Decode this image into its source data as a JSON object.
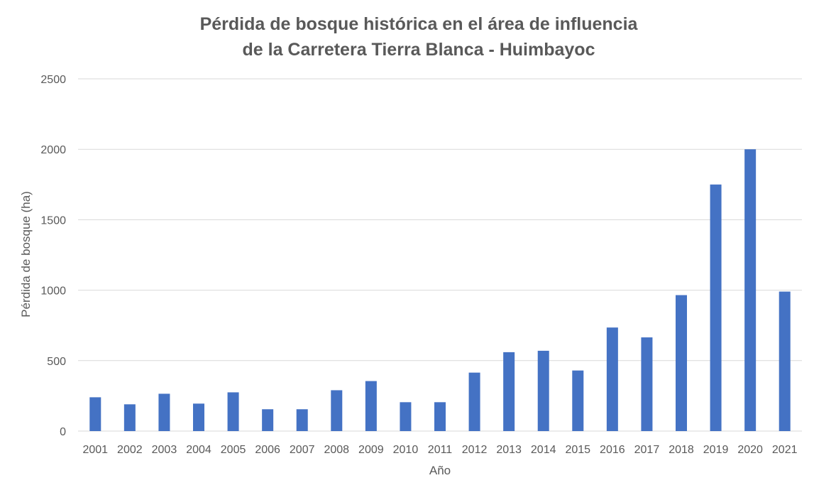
{
  "chart_data": {
    "type": "bar",
    "title_lines": [
      "Pérdida de bosque histórica en el área de influencia",
      "de la Carretera Tierra Blanca - Huimbayoc"
    ],
    "xlabel": "Año",
    "ylabel": "Pérdida de bosque (ha)",
    "ylim": [
      0,
      2500
    ],
    "yticks": [
      "0",
      "500",
      "1000",
      "1500",
      "2000",
      "2500"
    ],
    "grid": true,
    "legend": "none",
    "bar_color": "#4472c4",
    "categories": [
      "2001",
      "2002",
      "2003",
      "2004",
      "2005",
      "2006",
      "2007",
      "2008",
      "2009",
      "2010",
      "2011",
      "2012",
      "2013",
      "2014",
      "2015",
      "2016",
      "2017",
      "2018",
      "2019",
      "2020",
      "2021"
    ],
    "values": [
      240,
      190,
      265,
      195,
      275,
      155,
      155,
      290,
      355,
      205,
      205,
      415,
      560,
      570,
      430,
      735,
      665,
      965,
      1750,
      2000,
      990
    ]
  }
}
